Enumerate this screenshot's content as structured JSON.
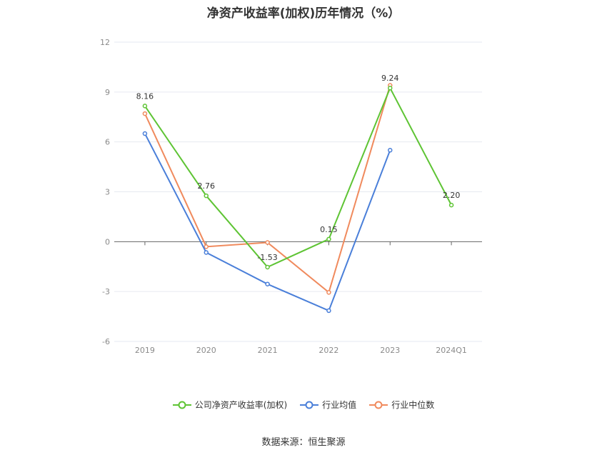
{
  "title": "净资产收益率(加权)历年情况（%）",
  "source": "数据来源：恒生聚源",
  "chart_data": {
    "type": "line",
    "title": "净资产收益率(加权)历年情况（%）",
    "categories": [
      "2019",
      "2020",
      "2021",
      "2022",
      "2023",
      "2024Q1"
    ],
    "ylim": [
      -6,
      12
    ],
    "yticks": [
      -6,
      -3,
      0,
      3,
      6,
      9,
      12
    ],
    "grid": true,
    "legend_position": "bottom",
    "series": [
      {
        "name": "公司净资产收益率(加权)",
        "color": "#5ec434",
        "values": [
          8.16,
          2.76,
          -1.53,
          0.15,
          9.24,
          2.2
        ],
        "labels": [
          "8.16",
          "2.76",
          "-1.53",
          "0.15",
          "9.24",
          "2.20"
        ]
      },
      {
        "name": "行业均值",
        "color": "#4a7fd9",
        "values": [
          6.5,
          -0.65,
          -2.55,
          -4.15,
          5.5,
          null
        ]
      },
      {
        "name": "行业中位数",
        "color": "#f08a5d",
        "values": [
          7.7,
          -0.3,
          -0.05,
          -3.05,
          9.4,
          null
        ]
      }
    ]
  }
}
